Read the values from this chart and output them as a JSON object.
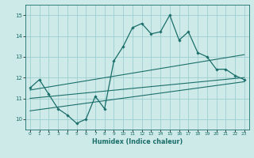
{
  "xlabel": "Humidex (Indice chaleur)",
  "ylabel": "",
  "bg_color": "#ceeae8",
  "grid_color": "#9ecece",
  "line_color": "#1a6e6a",
  "xlim": [
    -0.5,
    23.5
  ],
  "ylim": [
    9.5,
    15.5
  ],
  "yticks": [
    10,
    11,
    12,
    13,
    14,
    15
  ],
  "xticks": [
    0,
    1,
    2,
    3,
    4,
    5,
    6,
    7,
    8,
    9,
    10,
    11,
    12,
    13,
    14,
    15,
    16,
    17,
    18,
    19,
    20,
    21,
    22,
    23
  ],
  "series1_x": [
    0,
    1,
    2,
    3,
    4,
    5,
    6,
    7,
    8,
    9,
    10,
    11,
    12,
    13,
    14,
    15,
    16,
    17,
    18,
    19,
    20,
    21,
    22,
    23
  ],
  "series1_y": [
    11.5,
    11.9,
    11.2,
    10.5,
    10.2,
    9.8,
    10.0,
    11.1,
    10.5,
    12.8,
    13.5,
    14.4,
    14.6,
    14.1,
    14.2,
    15.0,
    13.8,
    14.2,
    13.2,
    13.0,
    12.4,
    12.4,
    12.1,
    11.9
  ],
  "series2_x": [
    0,
    23
  ],
  "series2_y": [
    11.0,
    12.0
  ],
  "series3_x": [
    0,
    23
  ],
  "series3_y": [
    10.4,
    11.8
  ],
  "series4_x": [
    0,
    23
  ],
  "series4_y": [
    11.4,
    13.1
  ]
}
